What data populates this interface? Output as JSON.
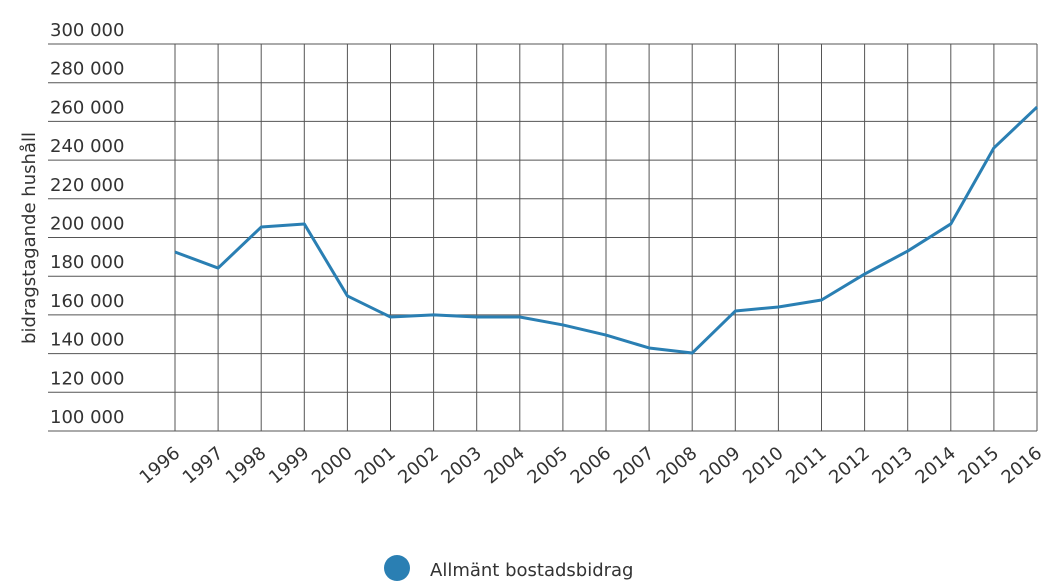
{
  "chart_data": {
    "type": "line",
    "y_label": "bidragstagande hushåll",
    "x": [
      "1996",
      "1997",
      "1998",
      "1999",
      "2000",
      "2001",
      "2002",
      "2003",
      "2004",
      "2005",
      "2006",
      "2007",
      "2008",
      "2009",
      "2010",
      "2011",
      "2012",
      "2013",
      "2014",
      "2015",
      "2016"
    ],
    "series": [
      {
        "name": "Allmänt bostadsbidrag",
        "color": "#2a7fb3",
        "values": [
          192500,
          184200,
          205400,
          207000,
          169800,
          158900,
          160000,
          158900,
          158900,
          154800,
          149600,
          142900,
          140300,
          162000,
          164100,
          167700,
          181100,
          193000,
          207000,
          246300,
          267400
        ]
      }
    ],
    "ylim": [
      100000,
      300000
    ],
    "yticks": [
      {
        "value": 100000,
        "label": "100 000"
      },
      {
        "value": 120000,
        "label": "120 000"
      },
      {
        "value": 140000,
        "label": "140 000"
      },
      {
        "value": 160000,
        "label": "160 000"
      },
      {
        "value": 180000,
        "label": "180 000"
      },
      {
        "value": 200000,
        "label": "200 000"
      },
      {
        "value": 220000,
        "label": "220 000"
      },
      {
        "value": 240000,
        "label": "240 000"
      },
      {
        "value": 260000,
        "label": "260 000"
      },
      {
        "value": 280000,
        "label": "280 000"
      },
      {
        "value": 300000,
        "label": "300 000"
      }
    ],
    "grid": true
  }
}
